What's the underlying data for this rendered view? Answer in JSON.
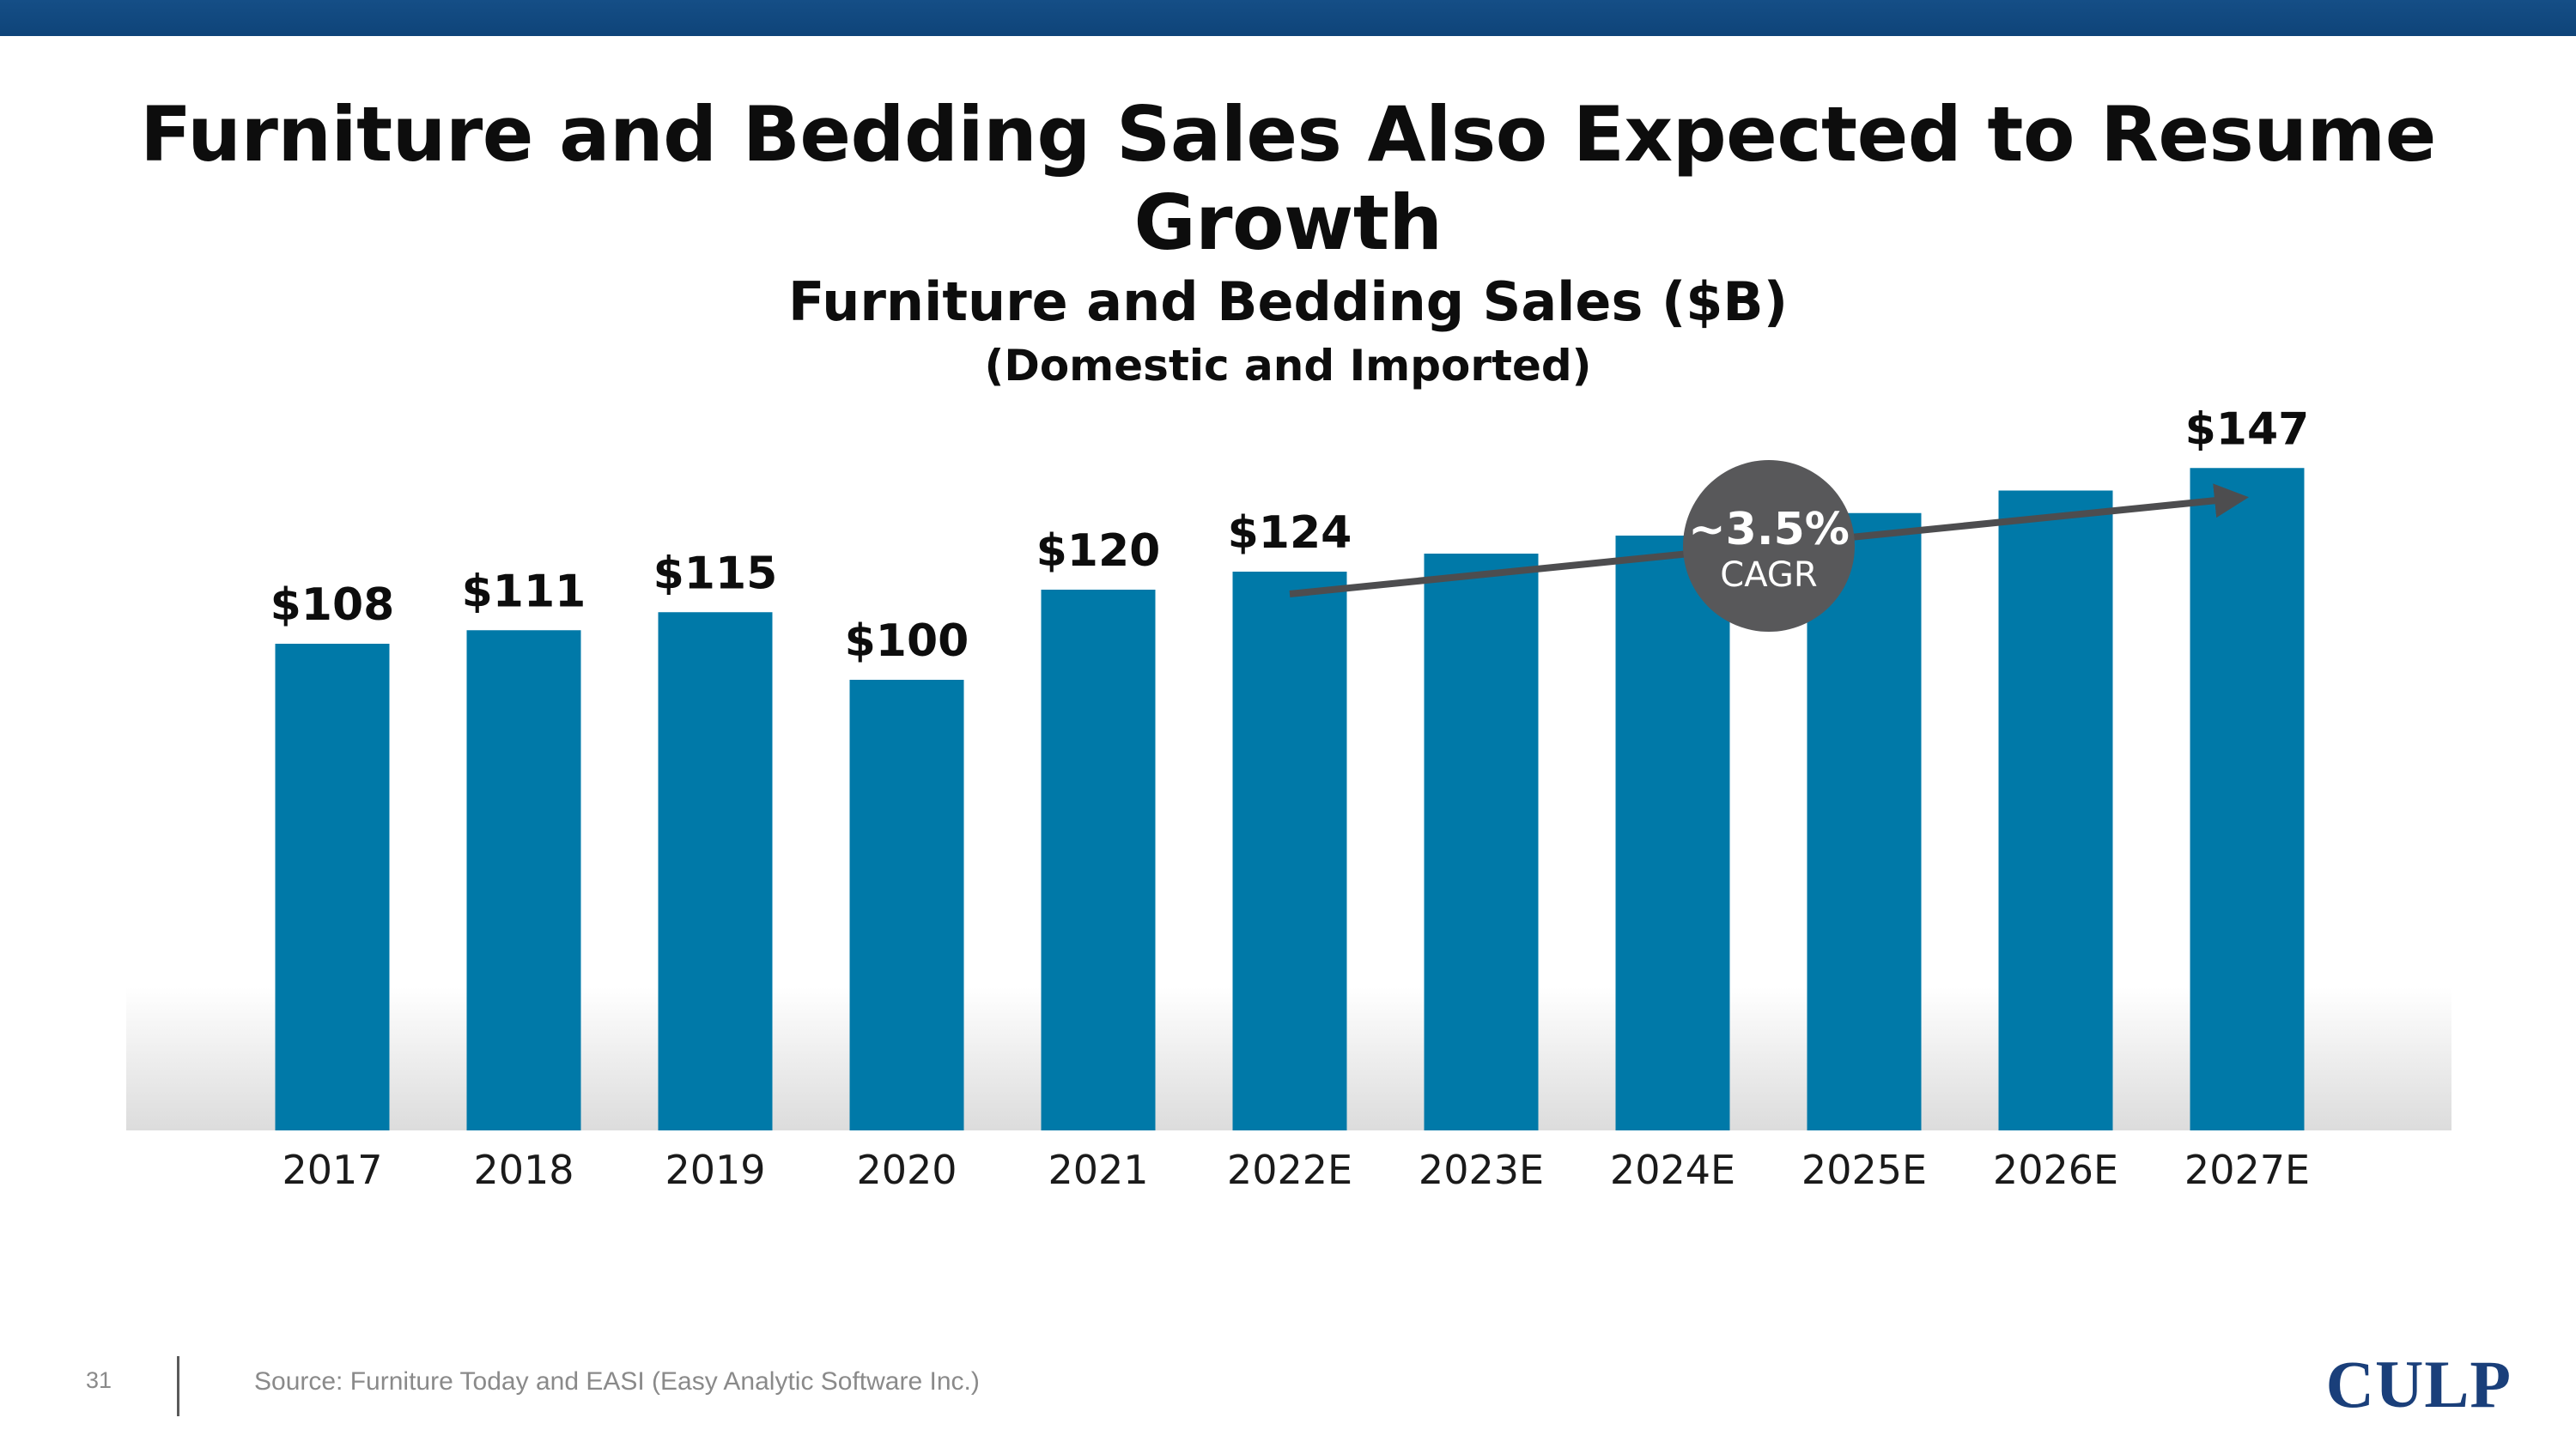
{
  "slide": {
    "title": "Furniture and Bedding Sales Also Expected to Resume Growth",
    "page_number": "31",
    "source": "Source: Furniture Today and EASI (Easy Analytic Software Inc.)",
    "logo_text": "CULP"
  },
  "colors": {
    "bar": "#0079a8",
    "top_band": "#154e86",
    "arrow": "#4d4d4f",
    "badge": "#58585a",
    "logo": "#1a3f7a"
  },
  "chart_data": {
    "type": "bar",
    "title": "Furniture and Bedding Sales ($B)",
    "subtitle": "(Domestic and Imported)",
    "categories": [
      "2017",
      "2018",
      "2019",
      "2020",
      "2021",
      "2022E",
      "2023E",
      "2024E",
      "2025E",
      "2026E",
      "2027E"
    ],
    "values": [
      108,
      111,
      115,
      100,
      120,
      124,
      128,
      132,
      137,
      142,
      147
    ],
    "data_labels": [
      "$108",
      "$111",
      "$115",
      "$100",
      "$120",
      "$124",
      "",
      "",
      "",
      "",
      "$147"
    ],
    "ylim": [
      0,
      160
    ],
    "grid": false,
    "annotation": {
      "value": "~3.5%",
      "label": "CAGR",
      "from_category": "2022E",
      "to_category": "2027E"
    }
  }
}
